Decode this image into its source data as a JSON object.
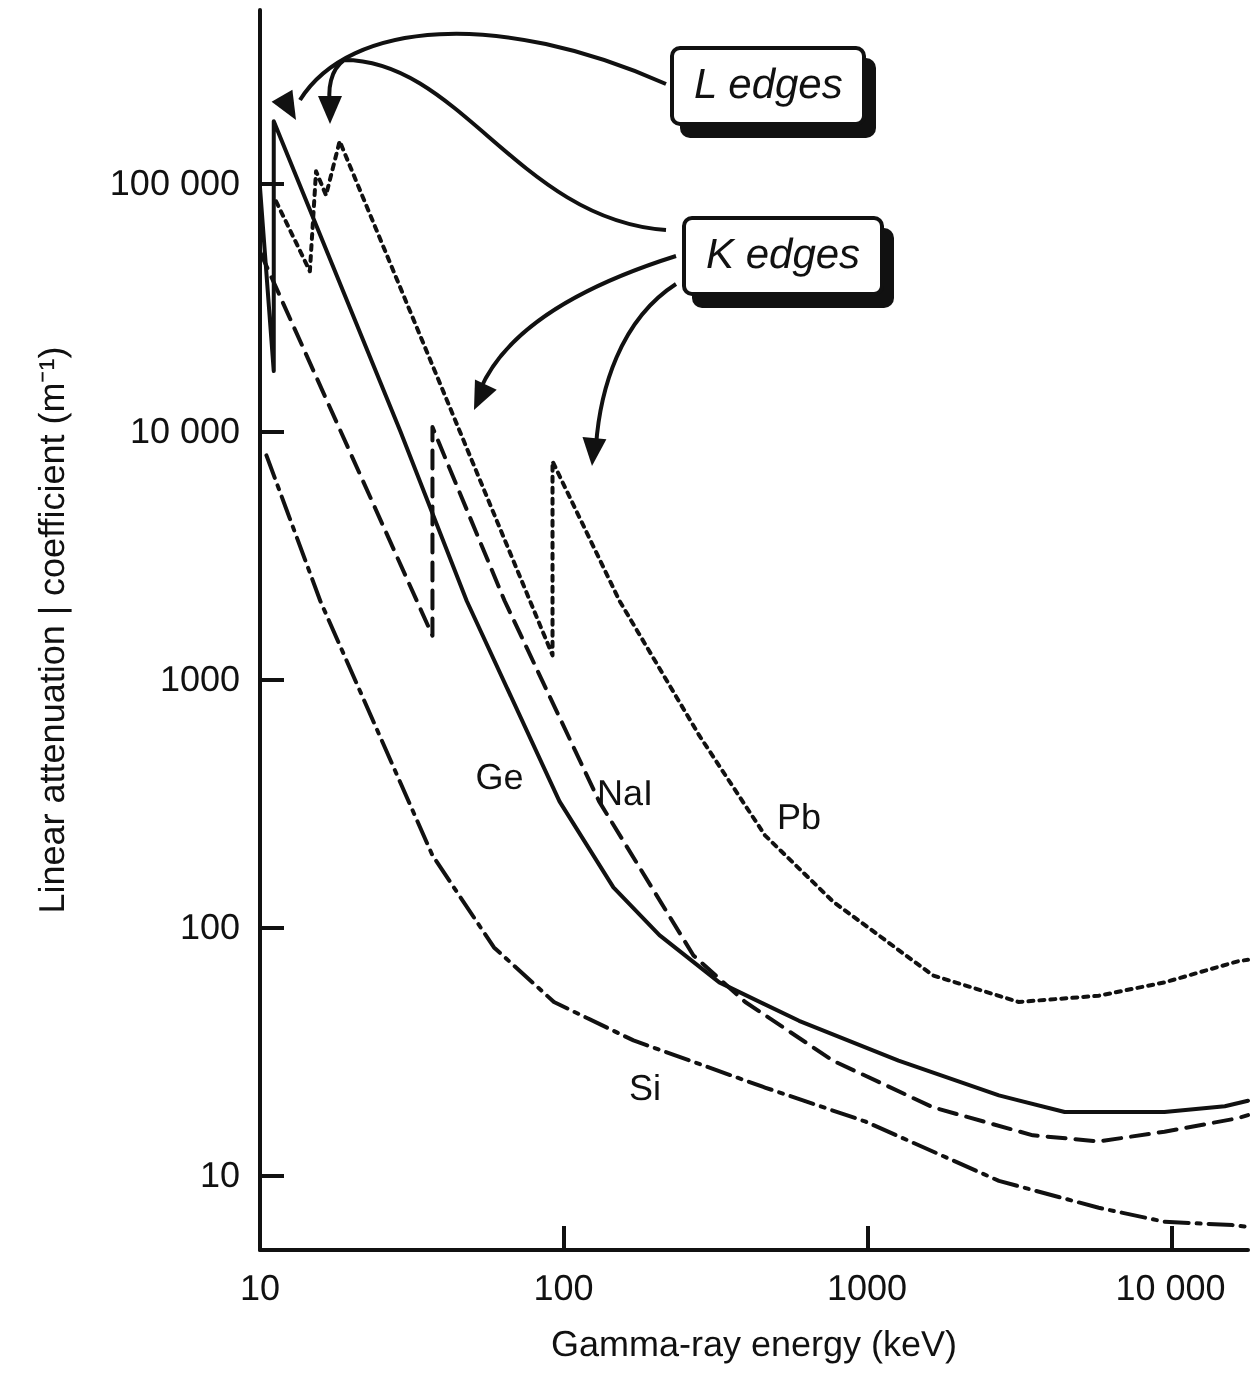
{
  "chart_data": {
    "type": "line",
    "xlabel": "Gamma-ray energy (keV)",
    "ylabel": "Linear attenuation | coefficient (m⁻¹)",
    "log": "xy",
    "grid": false,
    "marker": "none",
    "xlim": [
      10,
      18000
    ],
    "ylim": [
      5,
      500000
    ],
    "xticks": [
      10,
      100,
      1000,
      {
        "value": 10000,
        "label": "10 000"
      }
    ],
    "yticks": [
      10,
      100,
      1000,
      {
        "value": 10000,
        "label": "10 000"
      },
      {
        "value": 100000,
        "label": "100 000"
      }
    ],
    "series": [
      {
        "name": "Ge",
        "color": "#111111",
        "line_style": "solid",
        "x": [
          10,
          11.1,
          11.1,
          29,
          48,
          97,
          146,
          207,
          326,
          597,
          1270,
          2720,
          4480,
          9550,
          15100,
          18000
        ],
        "values": [
          96000,
          17500,
          178000,
          10000,
          2070,
          322,
          145,
          93,
          60,
          42,
          29,
          21,
          18,
          18,
          19,
          20
        ]
      },
      {
        "name": "NaI",
        "color": "#111111",
        "line_style": "dashed",
        "x": [
          10,
          37,
          37,
          64,
          131,
          268,
          397,
          773,
          1650,
          3520,
          5800,
          9550,
          16700,
          18000
        ],
        "values": [
          53000,
          1500,
          10400,
          2070,
          322,
          77,
          50,
          29,
          18.8,
          14.5,
          13.7,
          15,
          17,
          17.5
        ]
      },
      {
        "name": "Pb",
        "color": "#111111",
        "line_style": "dotted",
        "x": [
          11.3,
          14.6,
          15.3,
          16.5,
          18.3,
          92,
          92,
          153,
          280,
          461,
          773,
          1650,
          3160,
          5800,
          9550,
          16700,
          18000
        ],
        "values": [
          84600,
          44200,
          112000,
          89500,
          148000,
          1250,
          7570,
          2070,
          594,
          235,
          127,
          64,
          50,
          53,
          60,
          73,
          74
        ]
      },
      {
        "name": "Si",
        "color": "#111111",
        "line_style": "dashdot",
        "x": [
          10.5,
          15.8,
          37,
          59,
          93,
          170,
          461,
          985,
          2720,
          5800,
          9550,
          16000,
          18000
        ],
        "values": [
          8000,
          2070,
          195,
          83,
          50,
          35,
          22.6,
          16.5,
          9.5,
          7.4,
          6.5,
          6.3,
          6.2
        ]
      }
    ],
    "annotations": [
      "L edges",
      "K edges"
    ]
  }
}
